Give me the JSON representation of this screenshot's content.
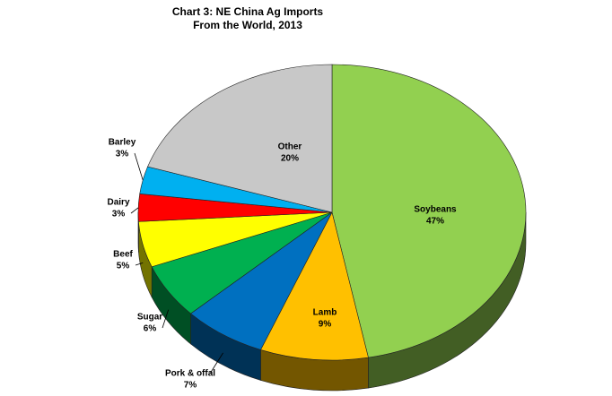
{
  "chart_data": {
    "type": "pie",
    "title": "Chart 3: NE China Ag Imports",
    "subtitle": "From the World, 2013",
    "categories": [
      "Soybeans",
      "Lamb",
      "Pork & offal",
      "Sugar",
      "Beef",
      "Dairy",
      "Barley",
      "Other"
    ],
    "values": [
      47,
      9,
      7,
      6,
      5,
      3,
      3,
      20
    ],
    "value_labels": [
      "47%",
      "9%",
      "7%",
      "6%",
      "5%",
      "3%",
      "3%",
      "20%"
    ],
    "colors": [
      "#92d050",
      "#ffc000",
      "#0070c0",
      "#00b050",
      "#ffff00",
      "#ff0000",
      "#00b0f0",
      "#c8c8c8"
    ],
    "three_d": true
  }
}
